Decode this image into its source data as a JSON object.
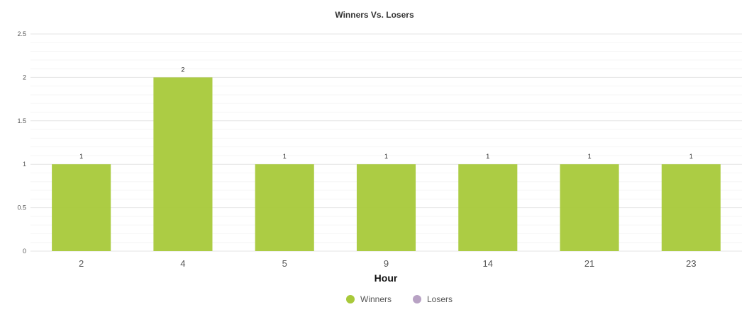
{
  "chart_data": {
    "type": "bar",
    "title": "Winners Vs. Losers",
    "xlabel": "Hour",
    "ylabel": "",
    "categories": [
      "2",
      "4",
      "5",
      "9",
      "14",
      "21",
      "23"
    ],
    "series": [
      {
        "name": "Winners",
        "color": "#a8c93a",
        "values": [
          1,
          2,
          1,
          1,
          1,
          1,
          1
        ]
      },
      {
        "name": "Losers",
        "color": "#b8a2c4",
        "values": [
          0,
          0,
          0,
          0,
          0,
          0,
          0
        ]
      }
    ],
    "ylim": [
      0,
      2.5
    ],
    "y_ticks": [
      "0",
      "0.5",
      "1",
      "1.5",
      "2",
      "2.5"
    ],
    "grid": true,
    "legend_position": "bottom"
  }
}
